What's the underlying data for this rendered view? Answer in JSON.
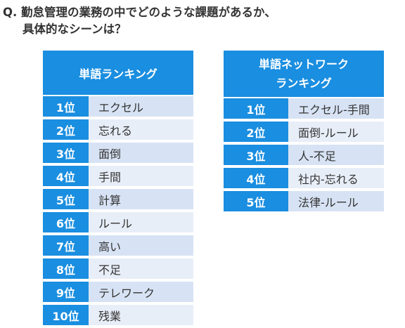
{
  "question": {
    "line1": "Q. 勤怠管理の業務の中でどのような課題があるか、",
    "line2": "具体的なシーンは？"
  },
  "word_ranking": {
    "title": "単語ランキング",
    "rows": [
      {
        "rank": "1位",
        "word": "エクセル"
      },
      {
        "rank": "2位",
        "word": "忘れる"
      },
      {
        "rank": "3位",
        "word": "面倒"
      },
      {
        "rank": "4位",
        "word": "手間"
      },
      {
        "rank": "5位",
        "word": "計算"
      },
      {
        "rank": "6位",
        "word": "ルール"
      },
      {
        "rank": "7位",
        "word": "高い"
      },
      {
        "rank": "8位",
        "word": "不足"
      },
      {
        "rank": "9位",
        "word": "テレワーク"
      },
      {
        "rank": "10位",
        "word": "残業"
      }
    ]
  },
  "network_ranking": {
    "title_line1": "単語ネットワーク",
    "title_line2": "ランキング",
    "rows": [
      {
        "rank": "1位",
        "word": "エクセル-手間"
      },
      {
        "rank": "2位",
        "word": "面倒-ルール"
      },
      {
        "rank": "3位",
        "word": "人-不足"
      },
      {
        "rank": "4位",
        "word": "社内-忘れる"
      },
      {
        "rank": "5位",
        "word": "法律-ルール"
      }
    ]
  },
  "colors": {
    "header_blue": "#1a8ee0",
    "row_light_a": "#d7e3f4",
    "row_light_b": "#e8eef8"
  }
}
